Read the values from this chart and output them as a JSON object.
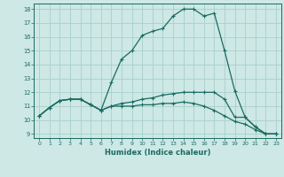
{
  "xlabel": "Humidex (Indice chaleur)",
  "bg_color": "#cde8e5",
  "grid_color": "#a8d0cc",
  "line_color": "#1a6b60",
  "xlim": [
    -0.5,
    23.5
  ],
  "ylim": [
    8.7,
    18.4
  ],
  "yticks": [
    9,
    10,
    11,
    12,
    13,
    14,
    15,
    16,
    17,
    18
  ],
  "xticks": [
    0,
    1,
    2,
    3,
    4,
    5,
    6,
    7,
    8,
    9,
    10,
    11,
    12,
    13,
    14,
    15,
    16,
    17,
    18,
    19,
    20,
    21,
    22,
    23
  ],
  "line1_x": [
    0,
    1,
    2,
    3,
    4,
    5,
    6,
    7,
    8,
    9,
    10,
    11,
    12,
    13,
    14,
    15,
    16,
    17,
    18,
    19,
    20,
    21,
    22,
    23
  ],
  "line1_y": [
    10.3,
    10.9,
    11.4,
    11.5,
    11.5,
    11.1,
    10.7,
    12.7,
    14.4,
    15.0,
    16.1,
    16.4,
    16.6,
    17.5,
    18.0,
    18.0,
    17.5,
    17.7,
    15.0,
    12.1,
    10.2,
    9.5,
    9.0,
    9.0
  ],
  "line2_x": [
    0,
    1,
    2,
    3,
    4,
    5,
    6,
    7,
    8,
    9,
    10,
    11,
    12,
    13,
    14,
    15,
    16,
    17,
    18,
    19,
    20,
    21,
    22,
    23
  ],
  "line2_y": [
    10.3,
    10.9,
    11.4,
    11.5,
    11.5,
    11.1,
    10.7,
    11.0,
    11.2,
    11.3,
    11.5,
    11.6,
    11.8,
    11.9,
    12.0,
    12.0,
    12.0,
    12.0,
    11.5,
    10.2,
    10.2,
    9.5,
    9.0,
    9.0
  ],
  "line3_x": [
    0,
    1,
    2,
    3,
    4,
    5,
    6,
    7,
    8,
    9,
    10,
    11,
    12,
    13,
    14,
    15,
    16,
    17,
    18,
    19,
    20,
    21,
    22,
    23
  ],
  "line3_y": [
    10.3,
    10.9,
    11.4,
    11.5,
    11.5,
    11.1,
    10.7,
    11.0,
    11.0,
    11.0,
    11.1,
    11.1,
    11.2,
    11.2,
    11.3,
    11.2,
    11.0,
    10.7,
    10.3,
    9.9,
    9.7,
    9.3,
    9.0,
    9.0
  ]
}
